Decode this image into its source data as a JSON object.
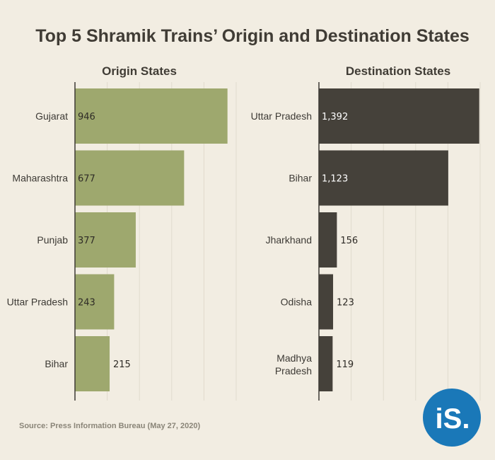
{
  "title": "Top 5 Shramik Trains’ Origin and Destination States",
  "source": "Source: Press Information Bureau (May 27, 2020)",
  "logo": {
    "text": "iS.",
    "color": "#1a78b8"
  },
  "colors": {
    "origin": "#9ea86e",
    "destination": "#45413a",
    "grid": "#e0dacd",
    "axis": "#3d3a35"
  },
  "chart_data": [
    {
      "type": "bar",
      "orientation": "horizontal",
      "title": "Origin States",
      "categories": [
        "Gujarat",
        "Maharashtra",
        "Punjab",
        "Uttar Pradesh",
        "Bihar"
      ],
      "values": [
        946,
        677,
        377,
        243,
        215
      ],
      "value_labels": [
        "946",
        "677",
        "377",
        "243",
        "215"
      ],
      "xlim": [
        0,
        1000
      ]
    },
    {
      "type": "bar",
      "orientation": "horizontal",
      "title": "Destination States",
      "categories": [
        "Uttar Pradesh",
        "Bihar",
        "Jharkhand",
        "Odisha",
        "Madhya Pradesh"
      ],
      "values": [
        1392,
        1123,
        156,
        123,
        119
      ],
      "value_labels": [
        "1,392",
        "1,123",
        "156",
        "123",
        "119"
      ],
      "xlim": [
        0,
        1400
      ]
    }
  ]
}
